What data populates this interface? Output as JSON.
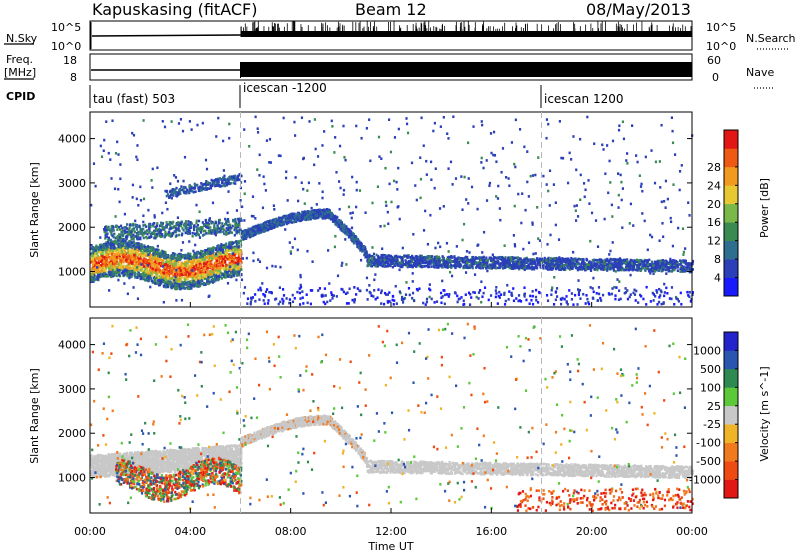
{
  "header": {
    "station": "Kapuskasing (fitACF)",
    "beam": "Beam 12",
    "date": "08/May/2013"
  },
  "top_panels": {
    "nsky_label": "N.Sky",
    "nsky_ticks": [
      "10^5",
      "10^0"
    ],
    "nsearch_label": "N.Search",
    "nsearch_ticks": [
      "10^5",
      "10^0"
    ],
    "freq_label_1": "Freq.",
    "freq_label_2": "[MHz]",
    "freq_ticks": [
      "18",
      "8"
    ],
    "nave_label": "Nave",
    "nave_ticks": [
      "60",
      "0"
    ],
    "cpid_label": "CPID",
    "cpid_segments": [
      {
        "label": "tau (fast) 503",
        "start": 0,
        "end": 6
      },
      {
        "label": "icescan -1200",
        "start": 6,
        "end": 18
      },
      {
        "label": "icescan 1200",
        "start": 18,
        "end": 24
      }
    ]
  },
  "chart_data": [
    {
      "type": "heatmap",
      "name": "power",
      "xlabel": "Time UT",
      "ylabel": "Slant Range [km]",
      "xlim": [
        0,
        24
      ],
      "ylim": [
        200,
        4600
      ],
      "x_ticks": [
        0,
        4,
        8,
        12,
        16,
        20,
        24
      ],
      "x_tick_labels": [
        "00:00",
        "04:00",
        "08:00",
        "12:00",
        "16:00",
        "20:00",
        "00:00"
      ],
      "y_ticks": [
        1000,
        2000,
        3000,
        4000
      ],
      "colorbar": {
        "label": "Power [dB]",
        "range": [
          0,
          32
        ],
        "ticks": [
          "4",
          "8",
          "12",
          "16",
          "20",
          "24",
          "28"
        ],
        "colors": [
          "#1a1aff",
          "#2b3fb8",
          "#2e6e8e",
          "#3a8a52",
          "#7ab84a",
          "#e8c832",
          "#f29a1e",
          "#ee5a14",
          "#e31616"
        ]
      },
      "features": [
        {
          "t0": 0.0,
          "t1": 6.0,
          "r0": 700,
          "r1": 1600,
          "level": "high"
        },
        {
          "t0": 2.0,
          "t1": 6.0,
          "r0": 1800,
          "r1": 2100,
          "level": "medium"
        },
        {
          "t0": 3.0,
          "t1": 6.0,
          "r0": 2700,
          "r1": 3100,
          "level": "low"
        },
        {
          "t0": 6.0,
          "t1": 11.0,
          "r0": 1700,
          "r1": 2400,
          "level": "low"
        },
        {
          "t0": 11.0,
          "t1": 24.0,
          "r0": 1000,
          "r1": 1500,
          "level": "low"
        }
      ]
    },
    {
      "type": "heatmap",
      "name": "velocity",
      "xlabel": "Time UT",
      "ylabel": "Slant Range [km]",
      "xlim": [
        0,
        24
      ],
      "ylim": [
        200,
        4600
      ],
      "x_ticks": [
        0,
        4,
        8,
        12,
        16,
        20,
        24
      ],
      "x_tick_labels": [
        "00:00",
        "04:00",
        "08:00",
        "12:00",
        "16:00",
        "20:00",
        "00:00"
      ],
      "y_ticks": [
        1000,
        2000,
        3000,
        4000
      ],
      "colorbar": {
        "label": "Velocity [m s^-1]",
        "ticks": [
          "1000",
          "500",
          "100",
          "25",
          "-25",
          "-100",
          "-500",
          "-1000"
        ],
        "colors": [
          "#2424cc",
          "#2b56b0",
          "#2f8a52",
          "#5cc83a",
          "#c8c8c8",
          "#f0b428",
          "#f27a1e",
          "#ee4a12",
          "#e31616"
        ]
      },
      "features": [
        {
          "t0": 0.0,
          "t1": 6.0,
          "r0": 900,
          "r1": 1500,
          "level": "ground-scatter"
        },
        {
          "t0": 1.0,
          "t1": 5.5,
          "r0": 500,
          "r1": 1000,
          "level": "mixed"
        },
        {
          "t0": 6.0,
          "t1": 11.0,
          "r0": 1700,
          "r1": 2400,
          "level": "ground-scatter"
        },
        {
          "t0": 11.0,
          "t1": 24.0,
          "r0": 1000,
          "r1": 1500,
          "level": "ground-scatter"
        }
      ]
    }
  ]
}
